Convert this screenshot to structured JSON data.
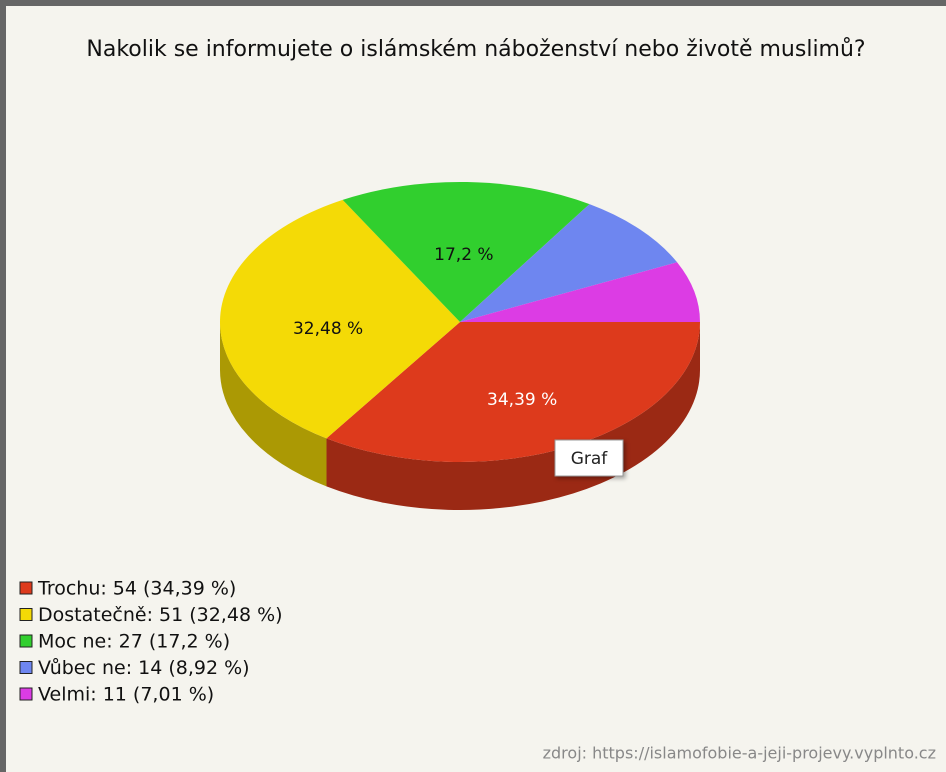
{
  "chart_data": {
    "type": "pie",
    "title": "Nakolik se informujete o islámském náboženství nebo životě muslimů?",
    "categories": [
      "Trochu: 54 (34,39 %)",
      "Dostatečně: 51 (32,48 %)",
      "Moc ne: 27 (17,2 %)",
      "Vůbec ne: 14 (8,92 %)",
      "Velmi: 11 (7,01 %)"
    ],
    "values": [
      34.39,
      32.48,
      17.2,
      8.92,
      7.01
    ],
    "value_labels": [
      "34,39 %",
      "32,48 %",
      "17,2 %",
      null,
      null
    ],
    "colors": [
      "#dd3a1c",
      "#f4da06",
      "#31cf2e",
      "#6e86f0",
      "#dc3ce4"
    ],
    "tooltip": "Graf",
    "source": "zdroj: https://islamofobie-a-jeji-projevy.vyplnto.cz"
  }
}
